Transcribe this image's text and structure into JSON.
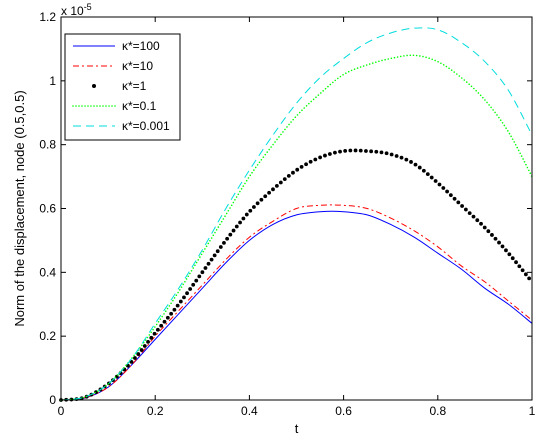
{
  "chart_data": {
    "type": "line",
    "title": "",
    "xlabel": "t",
    "ylabel": "Norm of the displacement, node (0.5,0.5)",
    "y_multiplier": "x 10",
    "y_multiplier_exp": "-5",
    "xlim": [
      0,
      1
    ],
    "ylim": [
      0,
      1.2
    ],
    "grid": false,
    "legend_position": "top-left",
    "x_ticks": [
      "0",
      "0.2",
      "0.4",
      "0.6",
      "0.8",
      "1"
    ],
    "y_ticks": [
      "0",
      "0.2",
      "0.4",
      "0.6",
      "0.8",
      "1",
      "1.2"
    ],
    "x": [
      0,
      0.05,
      0.1,
      0.15,
      0.2,
      0.25,
      0.3,
      0.35,
      0.4,
      0.45,
      0.5,
      0.55,
      0.6,
      0.65,
      0.7,
      0.75,
      0.8,
      0.85,
      0.9,
      0.95,
      1.0
    ],
    "series": [
      {
        "name": "κ*=100",
        "color": "#0000ff",
        "style": "solid",
        "values": [
          0,
          0.006,
          0.04,
          0.11,
          0.19,
          0.27,
          0.35,
          0.43,
          0.5,
          0.55,
          0.58,
          0.59,
          0.59,
          0.58,
          0.55,
          0.51,
          0.46,
          0.41,
          0.35,
          0.3,
          0.24
        ]
      },
      {
        "name": "κ*=10",
        "color": "#ff0000",
        "style": "dashdot",
        "values": [
          0,
          0.007,
          0.04,
          0.11,
          0.2,
          0.28,
          0.36,
          0.44,
          0.51,
          0.56,
          0.6,
          0.61,
          0.61,
          0.6,
          0.57,
          0.53,
          0.48,
          0.42,
          0.37,
          0.31,
          0.25
        ]
      },
      {
        "name": "κ*=1",
        "color": "#000000",
        "style": "dotted",
        "values": [
          0,
          0.008,
          0.05,
          0.12,
          0.21,
          0.3,
          0.4,
          0.5,
          0.59,
          0.66,
          0.72,
          0.76,
          0.78,
          0.78,
          0.77,
          0.74,
          0.68,
          0.61,
          0.54,
          0.46,
          0.37
        ]
      },
      {
        "name": "κ*=0.1",
        "color": "#00ff00",
        "style": "dotted",
        "values": [
          0,
          0.009,
          0.05,
          0.13,
          0.23,
          0.34,
          0.46,
          0.58,
          0.7,
          0.8,
          0.89,
          0.96,
          1.02,
          1.05,
          1.07,
          1.08,
          1.06,
          1.01,
          0.94,
          0.84,
          0.7
        ]
      },
      {
        "name": "κ*=0.001",
        "color": "#00dddd",
        "style": "dashed",
        "values": [
          0,
          0.009,
          0.05,
          0.13,
          0.24,
          0.35,
          0.47,
          0.6,
          0.72,
          0.83,
          0.93,
          1.01,
          1.07,
          1.12,
          1.15,
          1.165,
          1.16,
          1.12,
          1.06,
          0.97,
          0.83
        ]
      }
    ]
  }
}
